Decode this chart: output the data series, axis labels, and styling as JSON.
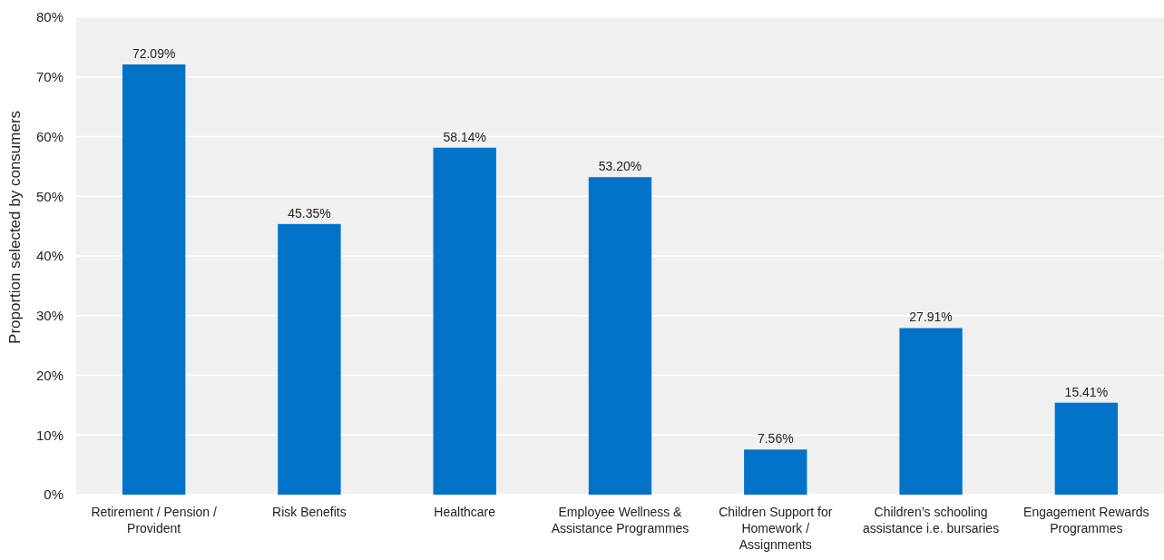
{
  "chart_data": {
    "type": "bar",
    "ylabel": "Proportion selected by consumers",
    "categories": [
      "Retirement / Pension / Provident",
      "Risk Benefits",
      "Healthcare",
      "Employee Wellness & Assistance Programmes",
      "Children Support for Homework / Assignments",
      "Children’s schooling assistance i.e. bursaries",
      "Engagement Rewards Programmes"
    ],
    "values": [
      72.09,
      45.35,
      58.14,
      53.2,
      7.56,
      27.91,
      15.41
    ],
    "value_labels": [
      "72.09%",
      "45.35%",
      "58.14%",
      "53.20%",
      "7.56%",
      "27.91%",
      "15.41%"
    ],
    "color": "#0073c9",
    "ylim": [
      0,
      80
    ],
    "yticks": [
      {
        "value": 0,
        "label": "0%"
      },
      {
        "value": 10,
        "label": "10%"
      },
      {
        "value": 20,
        "label": "20%"
      },
      {
        "value": 30,
        "label": "30%"
      },
      {
        "value": 40,
        "label": "40%"
      },
      {
        "value": 50,
        "label": "50%"
      },
      {
        "value": 60,
        "label": "60%"
      },
      {
        "value": 70,
        "label": "70%"
      },
      {
        "value": 80,
        "label": "80%"
      }
    ],
    "grid": "y"
  }
}
